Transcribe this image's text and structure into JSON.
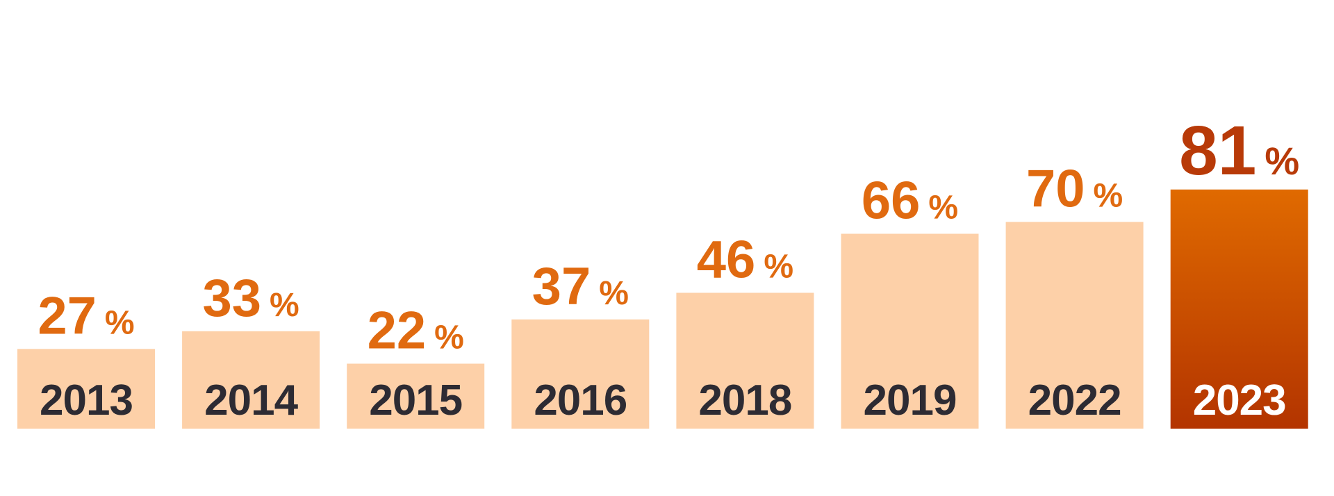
{
  "chart_data": {
    "type": "bar",
    "categories": [
      "2013",
      "2014",
      "2015",
      "2016",
      "2018",
      "2019",
      "2022",
      "2023"
    ],
    "values": [
      27,
      33,
      22,
      37,
      46,
      66,
      70,
      81
    ],
    "value_labels": [
      "27",
      "33",
      "22",
      "37",
      "46",
      "66",
      "70",
      "81"
    ],
    "unit": "%",
    "title": "",
    "xlabel": "",
    "ylabel": "",
    "ylim": [
      0,
      100
    ],
    "grid": false,
    "legend": "none",
    "highlight_index": 7
  },
  "colors": {
    "bar": "#fdd0a8",
    "highlight_top": "#e06a00",
    "highlight_bottom": "#b33400",
    "value_text": "#e06a10",
    "highlight_value_text": "#b83a08",
    "year_text": "#2d2b33",
    "highlight_year_text": "#ffffff"
  }
}
